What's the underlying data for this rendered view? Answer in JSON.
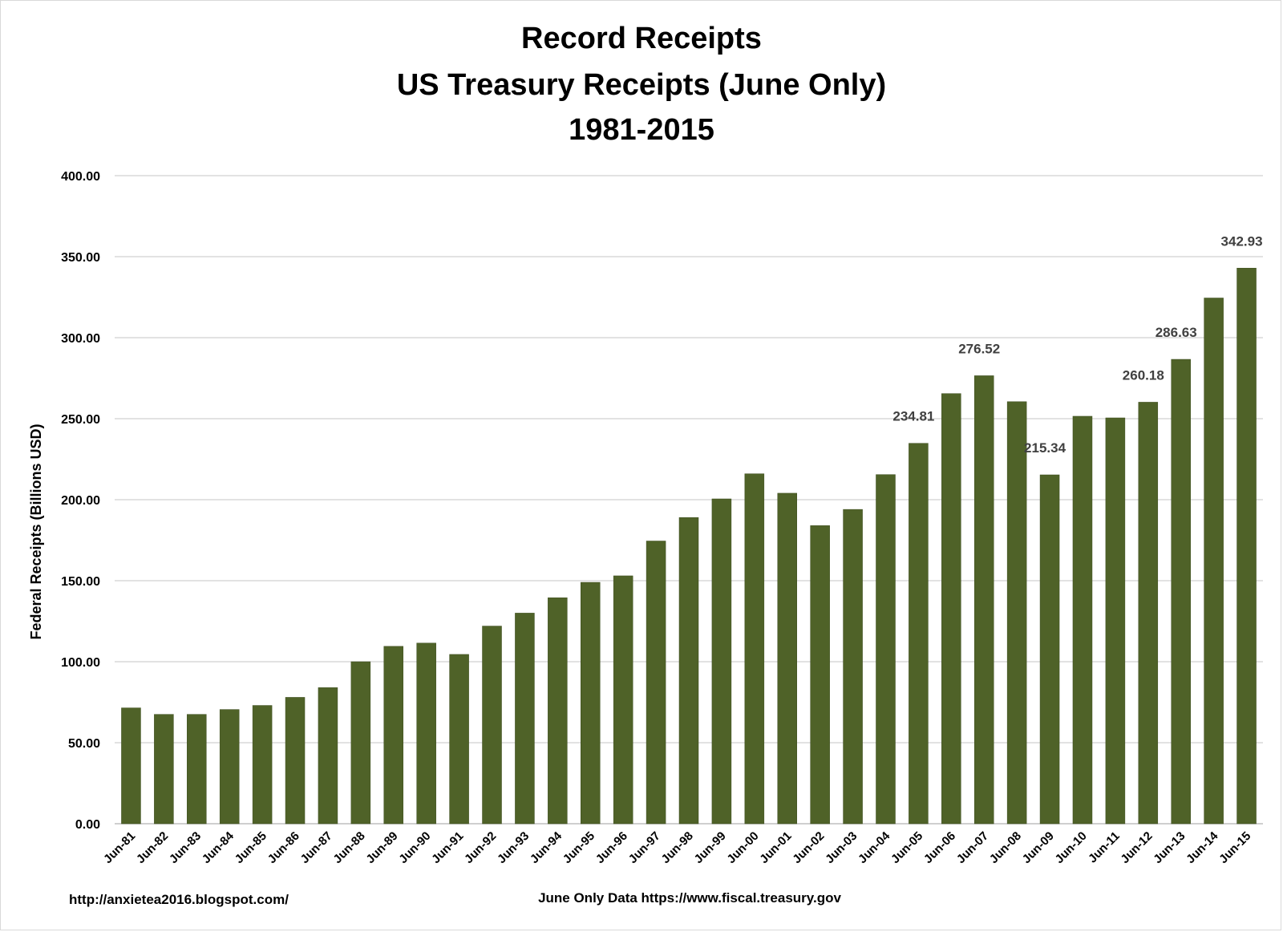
{
  "chart_data": {
    "type": "bar",
    "title": [
      "Record Receipts",
      "US Treasury Receipts (June Only)",
      "1981-2015"
    ],
    "xlabel": "June Only Data https://www.fiscal.treasury.gov",
    "ylabel": "Federal Receipts (Billions USD)",
    "ylim": [
      0,
      400
    ],
    "yticks": [
      "0.00",
      "50.00",
      "100.00",
      "150.00",
      "200.00",
      "250.00",
      "300.00",
      "350.00",
      "400.00"
    ],
    "grid": true,
    "bar_color": "#4f6228",
    "categories": [
      "Jun-81",
      "Jun-82",
      "Jun-83",
      "Jun-84",
      "Jun-85",
      "Jun-86",
      "Jun-87",
      "Jun-88",
      "Jun-89",
      "Jun-90",
      "Jun-91",
      "Jun-92",
      "Jun-93",
      "Jun-94",
      "Jun-95",
      "Jun-96",
      "Jun-97",
      "Jun-98",
      "Jun-99",
      "Jun-00",
      "Jun-01",
      "Jun-02",
      "Jun-03",
      "Jun-04",
      "Jun-05",
      "Jun-06",
      "Jun-07",
      "Jun-08",
      "Jun-09",
      "Jun-10",
      "Jun-11",
      "Jun-12",
      "Jun-13",
      "Jun-14",
      "Jun-15"
    ],
    "values": [
      71.5,
      67.5,
      67.5,
      70.5,
      73.0,
      78.0,
      84.0,
      100.0,
      109.5,
      111.5,
      104.5,
      122.0,
      130.0,
      139.5,
      149.0,
      153.0,
      174.5,
      189.0,
      200.5,
      216.0,
      204.0,
      184.0,
      194.0,
      215.5,
      234.81,
      265.5,
      276.52,
      260.5,
      215.34,
      251.5,
      250.5,
      260.18,
      286.63,
      324.5,
      342.93
    ],
    "data_labels": [
      {
        "category": "Jun-05",
        "text": "234.81"
      },
      {
        "category": "Jun-07",
        "text": "276.52"
      },
      {
        "category": "Jun-09",
        "text": "215.34"
      },
      {
        "category": "Jun-12",
        "text": "260.18"
      },
      {
        "category": "Jun-13",
        "text": "286.63"
      },
      {
        "category": "Jun-15",
        "text": "342.93"
      }
    ]
  },
  "footer": {
    "source_url": "http://anxietea2016.blogspot.com/"
  }
}
